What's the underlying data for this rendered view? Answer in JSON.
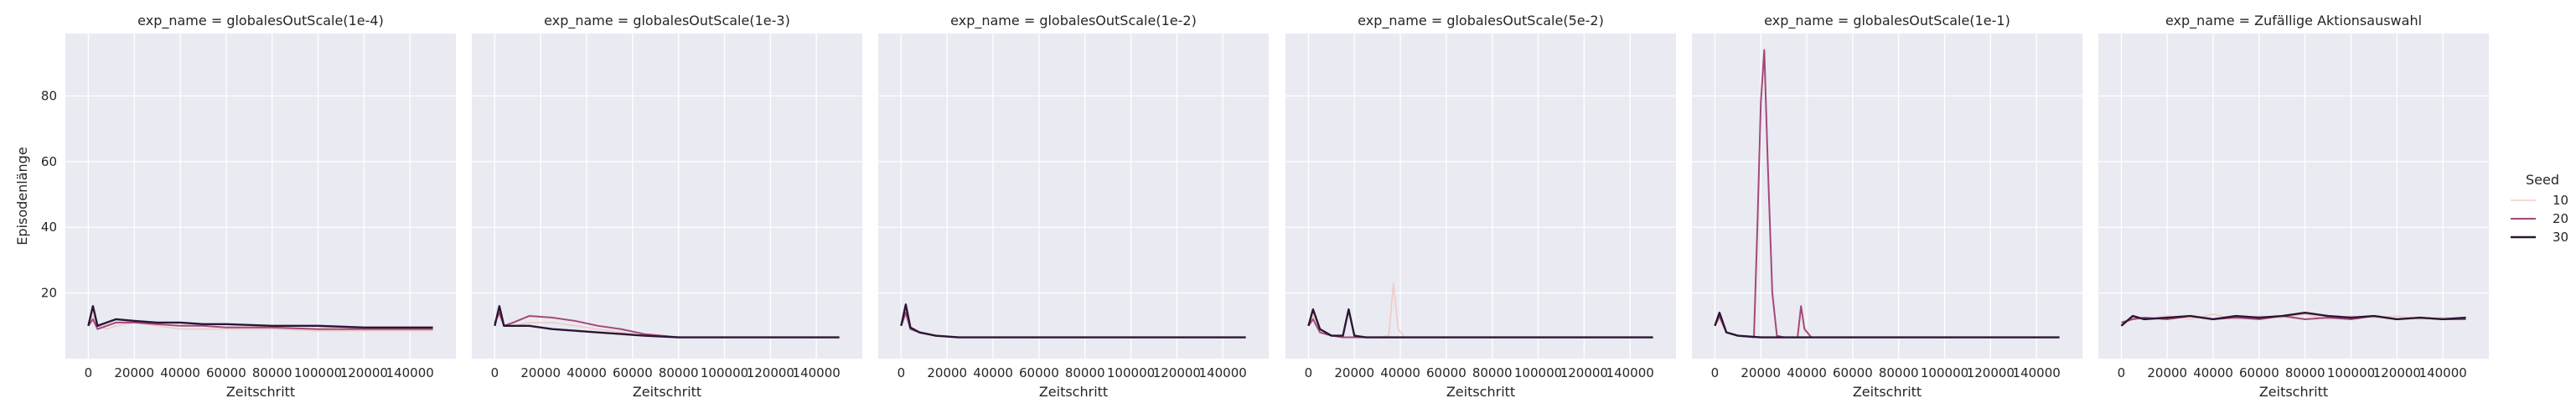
{
  "chart_data": {
    "type": "line",
    "facet_var": "exp_name",
    "xlabel": "Zeitschritt",
    "ylabel": "Episodenlänge",
    "xlim": [
      -10000,
      160000
    ],
    "ylim": [
      0,
      99
    ],
    "xticks": [
      0,
      20000,
      40000,
      60000,
      80000,
      100000,
      120000,
      140000
    ],
    "xtick_labels": [
      "0",
      "20000",
      "40000",
      "60000",
      "80000",
      "100000",
      "120000",
      "140000"
    ],
    "yticks": [
      20,
      40,
      60,
      80
    ],
    "ytick_labels": [
      "20",
      "40",
      "60",
      "80"
    ],
    "grid": true,
    "legend": {
      "title": "Seed",
      "placement": "right",
      "entries": [
        {
          "label": "10",
          "color": "#f0cbc6"
        },
        {
          "label": "20",
          "color": "#a3497a"
        },
        {
          "label": "30",
          "color": "#2a1733"
        }
      ]
    },
    "facets": [
      {
        "title": "exp_name = globalesOutScale(1e-4)",
        "series": [
          {
            "name": "10",
            "x": [
              0,
              2000,
              4000,
              8000,
              12000,
              20000,
              30000,
              40000,
              50000,
              60000,
              80000,
              100000,
              120000,
              140000,
              150000
            ],
            "y": [
              11,
              13,
              10,
              9,
              10,
              11,
              10,
              9,
              9,
              9,
              9,
              8.5,
              8.5,
              8.5,
              8.5
            ]
          },
          {
            "name": "20",
            "x": [
              0,
              2000,
              4000,
              8000,
              12000,
              20000,
              30000,
              40000,
              50000,
              60000,
              80000,
              100000,
              120000,
              140000,
              150000
            ],
            "y": [
              10,
              12,
              9,
              10,
              11,
              11,
              10.5,
              10,
              10,
              9.5,
              9.5,
              9,
              9,
              9,
              9
            ]
          },
          {
            "name": "30",
            "x": [
              0,
              2000,
              4000,
              8000,
              12000,
              20000,
              30000,
              40000,
              50000,
              60000,
              80000,
              100000,
              120000,
              140000,
              150000
            ],
            "y": [
              10,
              16,
              10,
              11,
              12,
              11.5,
              11,
              11,
              10.5,
              10.5,
              10,
              10,
              9.5,
              9.5,
              9.5
            ]
          }
        ]
      },
      {
        "title": "exp_name = globalesOutScale(1e-3)",
        "series": [
          {
            "name": "10",
            "x": [
              0,
              2000,
              4000,
              8000,
              15000,
              25000,
              35000,
              45000,
              55000,
              65000,
              80000,
              100000,
              120000,
              140000,
              150000
            ],
            "y": [
              11,
              13,
              10,
              10,
              11,
              11,
              10,
              9,
              8,
              7,
              6.5,
              6.5,
              6.5,
              6.5,
              6.5
            ]
          },
          {
            "name": "20",
            "x": [
              0,
              2000,
              4000,
              8000,
              15000,
              25000,
              35000,
              45000,
              55000,
              65000,
              80000,
              100000,
              120000,
              140000,
              150000
            ],
            "y": [
              11,
              14,
              10,
              11,
              13,
              12.5,
              11.5,
              10,
              9,
              7.5,
              6.5,
              6.5,
              6.5,
              6.5,
              6.5
            ]
          },
          {
            "name": "30",
            "x": [
              0,
              2000,
              4000,
              8000,
              15000,
              25000,
              35000,
              45000,
              55000,
              65000,
              80000,
              100000,
              120000,
              140000,
              150000
            ],
            "y": [
              10,
              16,
              10,
              10,
              10,
              9,
              8.5,
              8,
              7.5,
              7,
              6.5,
              6.5,
              6.5,
              6.5,
              6.5
            ]
          }
        ]
      },
      {
        "title": "exp_name = globalesOutScale(1e-2)",
        "series": [
          {
            "name": "10",
            "x": [
              0,
              2000,
              4000,
              8000,
              15000,
              25000,
              40000,
              60000,
              80000,
              100000,
              120000,
              140000,
              150000
            ],
            "y": [
              10,
              15,
              9,
              8,
              7,
              6.5,
              6.5,
              6.5,
              6.5,
              6.5,
              6.5,
              6.5,
              6.5
            ]
          },
          {
            "name": "20",
            "x": [
              0,
              2000,
              4000,
              8000,
              15000,
              25000,
              40000,
              60000,
              80000,
              100000,
              120000,
              140000,
              150000
            ],
            "y": [
              10,
              14,
              9,
              8,
              7,
              6.5,
              6.5,
              6.5,
              6.5,
              6.5,
              6.5,
              6.5,
              6.5
            ]
          },
          {
            "name": "30",
            "x": [
              0,
              2000,
              4000,
              8000,
              15000,
              25000,
              40000,
              60000,
              80000,
              100000,
              120000,
              140000,
              150000
            ],
            "y": [
              10,
              16.5,
              9.5,
              8,
              7,
              6.5,
              6.5,
              6.5,
              6.5,
              6.5,
              6.5,
              6.5,
              6.5
            ]
          }
        ]
      },
      {
        "title": "exp_name = globalesOutScale(5e-2)",
        "series": [
          {
            "name": "10",
            "x": [
              0,
              2000,
              5000,
              10000,
              15000,
              20000,
              30000,
              35000,
              37000,
              39000,
              42000,
              50000,
              80000,
              120000,
              150000
            ],
            "y": [
              10,
              13,
              8,
              7,
              6.5,
              6.5,
              6.5,
              7,
              23,
              9,
              6.5,
              6.5,
              6.5,
              6.5,
              6.5
            ]
          },
          {
            "name": "20",
            "x": [
              0,
              2000,
              5000,
              10000,
              15000,
              20000,
              30000,
              40000,
              60000,
              80000,
              120000,
              150000
            ],
            "y": [
              10,
              12,
              8,
              7,
              6.5,
              6.5,
              6.5,
              6.5,
              6.5,
              6.5,
              6.5,
              6.5
            ]
          },
          {
            "name": "30",
            "x": [
              0,
              2000,
              5000,
              10000,
              15000,
              17500,
              20000,
              25000,
              40000,
              60000,
              80000,
              120000,
              150000
            ],
            "y": [
              10,
              15,
              9,
              7,
              7,
              15,
              7,
              6.5,
              6.5,
              6.5,
              6.5,
              6.5,
              6.5
            ]
          }
        ]
      },
      {
        "title": "exp_name = globalesOutScale(1e-1)",
        "series": [
          {
            "name": "10",
            "x": [
              0,
              2000,
              5000,
              10000,
              20000,
              40000,
              60000,
              80000,
              120000,
              150000
            ],
            "y": [
              10,
              12,
              8,
              7,
              6.5,
              6.5,
              6.5,
              6.5,
              6.5,
              6.5
            ]
          },
          {
            "name": "20",
            "x": [
              0,
              2000,
              5000,
              10000,
              17000,
              18500,
              20000,
              21500,
              23000,
              25000,
              27000,
              30000,
              36000,
              37500,
              39000,
              42000,
              60000,
              100000,
              150000
            ],
            "y": [
              10,
              13,
              8,
              7,
              6.5,
              40,
              78,
              94,
              60,
              20,
              7,
              6.5,
              6.5,
              16,
              9,
              6.5,
              6.5,
              6.5,
              6.5
            ]
          },
          {
            "name": "30",
            "x": [
              0,
              2000,
              5000,
              10000,
              20000,
              40000,
              60000,
              80000,
              120000,
              150000
            ],
            "y": [
              10,
              14,
              8,
              7,
              6.5,
              6.5,
              6.5,
              6.5,
              6.5,
              6.5
            ]
          }
        ]
      },
      {
        "title": "exp_name = Zufällige Aktionsauswahl",
        "series": [
          {
            "name": "10",
            "x": [
              0,
              5000,
              10000,
              20000,
              30000,
              40000,
              50000,
              60000,
              70000,
              80000,
              90000,
              100000,
              110000,
              120000,
              130000,
              140000,
              150000
            ],
            "y": [
              11,
              12.5,
              12,
              13,
              12,
              13.5,
              12,
              13,
              12.5,
              13.5,
              12,
              13,
              12.5,
              13,
              12,
              12.5,
              12.5
            ]
          },
          {
            "name": "20",
            "x": [
              0,
              5000,
              10000,
              20000,
              30000,
              40000,
              50000,
              60000,
              70000,
              80000,
              90000,
              100000,
              110000,
              120000,
              130000,
              140000,
              150000
            ],
            "y": [
              11,
              12,
              12.5,
              12,
              13,
              12,
              12.5,
              12,
              13,
              12,
              12.5,
              12,
              13,
              12,
              12.5,
              12,
              12
            ]
          },
          {
            "name": "30",
            "x": [
              0,
              5000,
              10000,
              20000,
              30000,
              40000,
              50000,
              60000,
              70000,
              80000,
              90000,
              100000,
              110000,
              120000,
              130000,
              140000,
              150000
            ],
            "y": [
              10,
              13,
              12,
              12.5,
              13,
              12,
              13,
              12.5,
              13,
              14,
              13,
              12.5,
              13,
              12,
              12.5,
              12,
              12.5
            ]
          }
        ]
      }
    ]
  }
}
